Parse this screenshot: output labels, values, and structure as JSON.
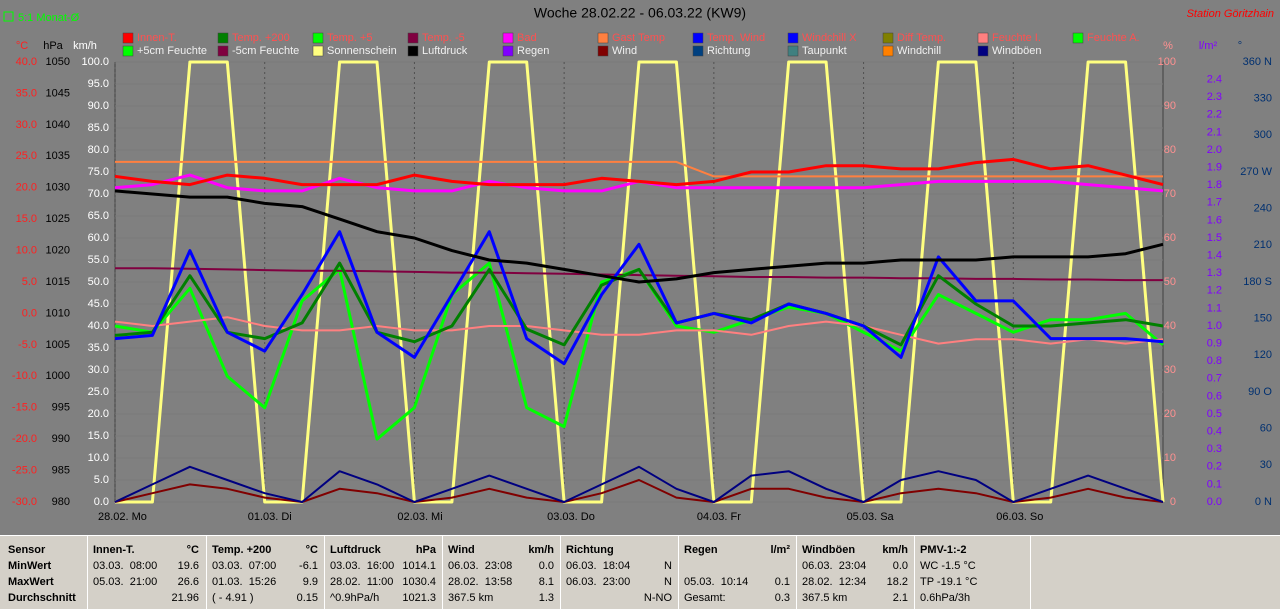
{
  "chart_data": {
    "type": "line",
    "title": "Woche 28.02.22 - 06.03.22 (KW9)",
    "station": "Station Göritzhain",
    "mode": "5:1 Monat-Ø",
    "x": [
      0,
      6,
      12,
      18,
      24,
      30,
      36,
      42,
      48,
      54,
      60,
      66,
      72,
      78,
      84,
      90,
      96,
      102,
      108,
      114,
      120,
      126,
      132,
      138,
      144,
      150,
      156,
      162,
      168
    ],
    "xlim": [
      0,
      168
    ],
    "xticks": [
      {
        "value": 0,
        "label": "28.02. Mo"
      },
      {
        "value": 24,
        "label": "01.03. Di"
      },
      {
        "value": 48,
        "label": "02.03. Mi"
      },
      {
        "value": 72,
        "label": "03.03. Do"
      },
      {
        "value": 96,
        "label": "04.03. Fr"
      },
      {
        "value": 120,
        "label": "05.03. Sa"
      },
      {
        "value": 144,
        "label": "06.03. So"
      }
    ],
    "grid": true,
    "axes": [
      {
        "unit": "°C",
        "lim": [
          -30,
          40
        ],
        "color": "#ff2020",
        "ticks": [
          {
            "value": -30,
            "label": "-30.0"
          },
          {
            "value": -25,
            "label": "-25.0"
          },
          {
            "value": -20,
            "label": "-20.0"
          },
          {
            "value": -15,
            "label": "-15.0"
          },
          {
            "value": -10,
            "label": "-10.0"
          },
          {
            "value": -5,
            "label": "-5.0"
          },
          {
            "value": 0,
            "label": "0.0"
          },
          {
            "value": 5,
            "label": "5.0"
          },
          {
            "value": 10,
            "label": "10.0"
          },
          {
            "value": 15,
            "label": "15.0"
          },
          {
            "value": 20,
            "label": "20.0"
          },
          {
            "value": 25,
            "label": "25.0"
          },
          {
            "value": 30,
            "label": "30.0"
          },
          {
            "value": 35,
            "label": "35.0"
          },
          {
            "value": 40,
            "label": "40.0"
          }
        ]
      },
      {
        "unit": "hPa",
        "lim": [
          980,
          1050
        ],
        "color": "#000000",
        "ticks": [
          980,
          985,
          990,
          995,
          1000,
          1005,
          1010,
          1015,
          1020,
          1025,
          1030,
          1035,
          1040,
          1045,
          1050
        ]
      },
      {
        "unit": "km/h",
        "lim": [
          0,
          100
        ],
        "color": "#ffffff",
        "ticks": [
          {
            "value": 0,
            "label": "0.0"
          },
          {
            "value": 5,
            "label": "5.0"
          },
          {
            "value": 10,
            "label": "10.0"
          },
          {
            "value": 15,
            "label": "15.0"
          },
          {
            "value": 20,
            "label": "20.0"
          },
          {
            "value": 25,
            "label": "25.0"
          },
          {
            "value": 30,
            "label": "30.0"
          },
          {
            "value": 35,
            "label": "35.0"
          },
          {
            "value": 40,
            "label": "40.0"
          },
          {
            "value": 45,
            "label": "45.0"
          },
          {
            "value": 50,
            "label": "50.0"
          },
          {
            "value": 55,
            "label": "55.0"
          },
          {
            "value": 60,
            "label": "60.0"
          },
          {
            "value": 65,
            "label": "65.0"
          },
          {
            "value": 70,
            "label": "70.0"
          },
          {
            "value": 75,
            "label": "75.0"
          },
          {
            "value": 80,
            "label": "80.0"
          },
          {
            "value": 85,
            "label": "85.0"
          },
          {
            "value": 90,
            "label": "90.0"
          },
          {
            "value": 95,
            "label": "95.0"
          },
          {
            "value": 100,
            "label": "100.0"
          }
        ]
      },
      {
        "unit": "%",
        "lim": [
          0,
          100
        ],
        "color": "#ff9090",
        "ticks": [
          0,
          10,
          20,
          30,
          40,
          50,
          60,
          70,
          80,
          90,
          100
        ]
      },
      {
        "unit": "l/m²",
        "lim": [
          0,
          2.5
        ],
        "color": "#8000ff",
        "ticks": [
          {
            "value": 0,
            "label": "0.0"
          },
          {
            "value": 0.1,
            "label": "0.1"
          },
          {
            "value": 0.2,
            "label": "0.2"
          },
          {
            "value": 0.3,
            "label": "0.3"
          },
          {
            "value": 0.4,
            "label": "0.4"
          },
          {
            "value": 0.5,
            "label": "0.5"
          },
          {
            "value": 0.6,
            "label": "0.6"
          },
          {
            "value": 0.7,
            "label": "0.7"
          },
          {
            "value": 0.8,
            "label": "0.8"
          },
          {
            "value": 0.9,
            "label": "0.9"
          },
          {
            "value": 1,
            "label": "1.0"
          },
          {
            "value": 1.1,
            "label": "1.1"
          },
          {
            "value": 1.2,
            "label": "1.2"
          },
          {
            "value": 1.3,
            "label": "1.3"
          },
          {
            "value": 1.4,
            "label": "1.4"
          },
          {
            "value": 1.5,
            "label": "1.5"
          },
          {
            "value": 1.6,
            "label": "1.6"
          },
          {
            "value": 1.7,
            "label": "1.7"
          },
          {
            "value": 1.8,
            "label": "1.8"
          },
          {
            "value": 1.9,
            "label": "1.9"
          },
          {
            "value": 2,
            "label": "2.0"
          },
          {
            "value": 2.1,
            "label": "2.1"
          },
          {
            "value": 2.2,
            "label": "2.2"
          },
          {
            "value": 2.3,
            "label": "2.3"
          },
          {
            "value": 2.4,
            "label": "2.4"
          }
        ]
      },
      {
        "unit": "°",
        "lim": [
          0,
          360
        ],
        "color": "#003070",
        "ticks": [
          {
            "value": 0,
            "label": "0 N"
          },
          30,
          60,
          {
            "value": 90,
            "label": "90 O"
          },
          120,
          150,
          {
            "value": 180,
            "label": "180 S"
          },
          210,
          240,
          {
            "value": 270,
            "label": "270 W"
          },
          300,
          330,
          {
            "value": 360,
            "label": "360 N"
          }
        ]
      }
    ],
    "legend": [
      [
        {
          "name": "Innen-T.",
          "color": "#ff0000"
        },
        {
          "name": "Temp. +200",
          "color": "#008000"
        },
        {
          "name": "Temp. +5",
          "color": "#00ff00"
        },
        {
          "name": "Temp. -5",
          "color": "#800040"
        },
        {
          "name": "Bad",
          "color": "#ff00ff"
        },
        {
          "name": "Gast Temp",
          "color": "#ff8040"
        },
        {
          "name": "Temp. Wind",
          "color": "#0000ff"
        },
        {
          "name": "Windchill X",
          "color": "#0000ff"
        },
        {
          "name": "Diff Temp.",
          "color": "#808000"
        },
        {
          "name": "Feuchte I.",
          "color": "#ff8080"
        },
        {
          "name": "Feuchte A.",
          "color": "#00ff00"
        }
      ],
      [
        {
          "name": "+5cm Feuchte",
          "color": "#00ff00"
        },
        {
          "name": "-5cm Feuchte",
          "color": "#800040"
        },
        {
          "name": "Sonnenschein",
          "color": "#ffff80"
        },
        {
          "name": "Luftdruck",
          "color": "#000000"
        },
        {
          "name": "Regen",
          "color": "#8000ff"
        },
        {
          "name": "Wind",
          "color": "#800000"
        },
        {
          "name": "Richtung",
          "color": "#004080"
        },
        {
          "name": "Taupunkt",
          "color": "#408080"
        },
        {
          "name": "Windchill",
          "color": "#ff8000"
        },
        {
          "name": "Windböen",
          "color": "#000080"
        }
      ]
    ],
    "series": [
      {
        "name": "Sonnenschein",
        "color": "#ffff80",
        "axis": 3,
        "width": 3,
        "values": [
          0,
          0,
          100,
          100,
          0,
          0,
          100,
          100,
          0,
          0,
          100,
          100,
          0,
          0,
          100,
          100,
          0,
          0,
          100,
          100,
          0,
          0,
          100,
          100,
          0,
          0,
          100,
          100,
          0
        ]
      },
      {
        "name": "Temp. +5",
        "color": "#00ff00",
        "axis": 0,
        "width": 3,
        "values": [
          -2,
          -3,
          4,
          -10,
          -15,
          2,
          7,
          -20,
          -15,
          3,
          8,
          -15,
          -18,
          5,
          7,
          -2,
          -3,
          -1,
          1,
          0,
          -3,
          -6,
          3,
          0,
          -3,
          -1,
          -1,
          0,
          -5
        ]
      },
      {
        "name": "Temp. -5",
        "color": "#800040",
        "axis": 0,
        "width": 2,
        "values": [
          7.2,
          7.2,
          7.1,
          7,
          6.9,
          6.8,
          6.8,
          6.7,
          6.6,
          6.5,
          6.5,
          6.4,
          6.3,
          6.2,
          6.1,
          6,
          5.9,
          5.8,
          5.8,
          5.7,
          5.7,
          5.6,
          5.6,
          5.5,
          5.5,
          5.4,
          5.4,
          5.3,
          5.3
        ]
      },
      {
        "name": "Feuchte I.",
        "color": "#ff8080",
        "axis": 3,
        "width": 2,
        "values": [
          41,
          40,
          41,
          42,
          40,
          39,
          39,
          40,
          39,
          39,
          40,
          40,
          39,
          38,
          38,
          39,
          39,
          38,
          40,
          41,
          40,
          38,
          36,
          37,
          37,
          36,
          37,
          36,
          37
        ]
      },
      {
        "name": "Wind",
        "color": "#800000",
        "axis": 2,
        "width": 2,
        "values": [
          0,
          2,
          4,
          3,
          1,
          0,
          3,
          2,
          0,
          1,
          3,
          1,
          0,
          2,
          5,
          1,
          0,
          3,
          3,
          1,
          0,
          2,
          3,
          2,
          0,
          1,
          3,
          1,
          0
        ]
      },
      {
        "name": "Windböen",
        "color": "#000080",
        "axis": 2,
        "width": 2,
        "values": [
          0,
          4,
          8,
          5,
          2,
          0,
          7,
          4,
          0,
          3,
          6,
          3,
          0,
          4,
          8,
          3,
          0,
          6,
          7,
          3,
          0,
          5,
          7,
          5,
          0,
          3,
          6,
          3,
          0
        ]
      },
      {
        "name": "Gast Temp",
        "color": "#ff8040",
        "axis": 0,
        "width": 2,
        "values": [
          24.1,
          24.1,
          24.1,
          24.1,
          24.1,
          24.1,
          24.1,
          24.1,
          24.1,
          24.1,
          24.1,
          24.1,
          24.1,
          24.1,
          24.1,
          24.1,
          21.8,
          21.8,
          21.8,
          21.8,
          21.8,
          21.8,
          21.8,
          21.8,
          21.8,
          21.8,
          21.8,
          21.8,
          21.8
        ]
      },
      {
        "name": "Temp. +200",
        "color": "#008000",
        "axis": 0,
        "width": 3,
        "values": [
          -3.5,
          -3,
          6,
          -3,
          -4,
          -1.5,
          8,
          -3,
          -4.5,
          -2,
          7,
          -2.5,
          -5,
          4.5,
          7,
          -1.5,
          0,
          -1,
          1.5,
          0,
          -2,
          -5,
          6,
          1.5,
          -2,
          -2,
          -1.5,
          -1,
          -2
        ]
      },
      {
        "name": "Temp. Wind",
        "color": "#0000ff",
        "axis": 0,
        "width": 3,
        "values": [
          -4,
          -3.5,
          10,
          -3,
          -6,
          3,
          13,
          -3,
          -7,
          3,
          13,
          -4,
          -8,
          3,
          11,
          -1.5,
          0,
          -1.5,
          1.5,
          0,
          -2,
          -7,
          9,
          2,
          2,
          -4,
          -4,
          -4,
          -4.5
        ]
      },
      {
        "name": "Luftdruck",
        "color": "#000000",
        "axis": 1,
        "width": 3,
        "values": [
          1029.5,
          1029,
          1028.5,
          1028.5,
          1027.5,
          1027,
          1025,
          1023,
          1022,
          1020,
          1018.5,
          1018,
          1017,
          1016,
          1015,
          1015.5,
          1016.5,
          1017,
          1017.5,
          1018,
          1018,
          1018.5,
          1018.5,
          1018.5,
          1019,
          1019,
          1019,
          1019.5,
          1021
        ]
      },
      {
        "name": "Bad",
        "color": "#ff00ff",
        "axis": 0,
        "width": 3,
        "values": [
          20,
          20.5,
          22,
          20,
          19.5,
          19.5,
          21.5,
          20,
          19.5,
          19.5,
          21,
          20,
          19.5,
          19.5,
          21,
          20,
          20,
          20,
          20,
          20,
          20,
          20.5,
          21,
          21,
          21,
          21,
          20.5,
          20,
          19.5
        ]
      },
      {
        "name": "Innen-T.",
        "color": "#ff0000",
        "axis": 0,
        "width": 3,
        "values": [
          21.8,
          21,
          20.5,
          22,
          21.5,
          20.5,
          20.5,
          20.5,
          22,
          21,
          20.5,
          20.5,
          20.5,
          21.5,
          21,
          20.5,
          21,
          22.5,
          22.5,
          23.5,
          23.5,
          23,
          23,
          24,
          24.5,
          23,
          23.5,
          22,
          20.5
        ]
      }
    ]
  },
  "stats": {
    "first": "Sensor",
    "row_labels": [
      "MinWert",
      "MaxWert",
      "Durchschnitt"
    ],
    "columns": [
      {
        "title": "Innen-T.",
        "unit": "°C",
        "rows": [
          {
            "l": "03.03.  08:00",
            "r": "19.6"
          },
          {
            "l": "05.03.  21:00",
            "r": "26.6"
          },
          {
            "r": "21.96"
          }
        ]
      },
      {
        "title": "Temp. +200",
        "unit": "°C",
        "rows": [
          {
            "l": "03.03.  07:00",
            "r": "-6.1"
          },
          {
            "l": "01.03.  15:26",
            "r": "9.9"
          },
          {
            "l": "( - 4.91 )",
            "r": "0.15"
          }
        ]
      },
      {
        "title": "Luftdruck",
        "unit": "hPa",
        "rows": [
          {
            "l": "03.03.  16:00",
            "r": "1014.1"
          },
          {
            "l": "28.02.  11:00",
            "r": "1030.4"
          },
          {
            "l": "^0.9hPa/h",
            "r": "1021.3"
          }
        ]
      },
      {
        "title": "Wind",
        "unit": "km/h",
        "rows": [
          {
            "l": "06.03.  23:08",
            "r": "0.0"
          },
          {
            "l": "28.02.  13:58",
            "r": "8.1"
          },
          {
            "l": "367.5 km",
            "r": "1.3"
          }
        ]
      },
      {
        "title": "Richtung",
        "rows": [
          {
            "l": "06.03.  18:04",
            "r": "N"
          },
          {
            "l": "06.03.  23:00",
            "r": "N"
          },
          {
            "r": "N-NO"
          }
        ]
      },
      {
        "title": "Regen",
        "unit": "l/m²",
        "rows": [
          {},
          {
            "l": "05.03.  10:14",
            "r": "0.1"
          },
          {
            "l": "Gesamt:",
            "r": "0.3"
          }
        ]
      },
      {
        "title": "Windböen",
        "unit": "km/h",
        "rows": [
          {
            "l": "06.03.  23:04",
            "r": "0.0"
          },
          {
            "l": "28.02.  12:34",
            "r": "18.2"
          },
          {
            "l": "367.5 km",
            "r": "2.1"
          }
        ]
      },
      {
        "title": "PMV-1:-2",
        "rows": [
          {
            "l": "WC -1.5 °C"
          },
          {
            "l": "TP -19.1 °C"
          },
          {
            "l": "0.6hPa/3h"
          }
        ]
      }
    ]
  }
}
